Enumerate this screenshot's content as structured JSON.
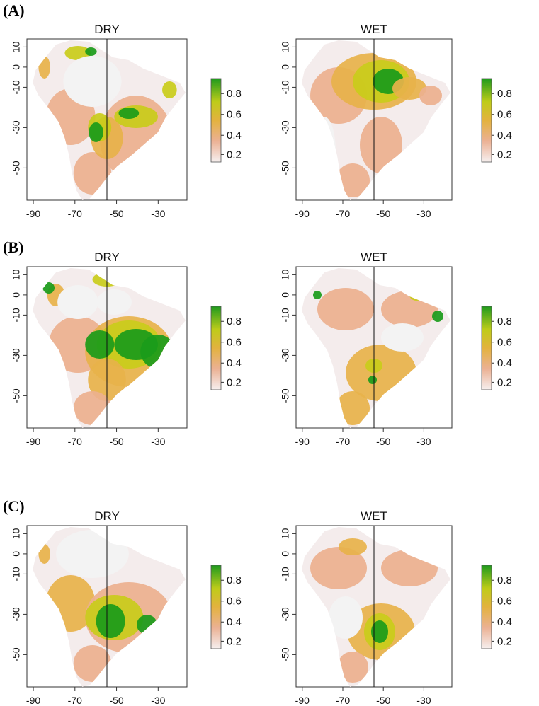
{
  "panels": [
    {
      "label": "(A)",
      "maps": [
        {
          "title": "DRY",
          "legend": [
            "0.8",
            "0.6",
            "0.4",
            "0.2"
          ],
          "x_ticks": [
            "-90",
            "-70",
            "-50",
            "-30"
          ],
          "y_ticks": [
            "10",
            "0",
            "-10",
            "-30",
            "-50"
          ],
          "pattern": "A-dry"
        },
        {
          "title": "WET",
          "legend": [
            "0.8",
            "0.6",
            "0.4",
            "0.2"
          ],
          "x_ticks": [
            "-90",
            "-70",
            "-50",
            "-30"
          ],
          "y_ticks": [
            "10",
            "0",
            "-10",
            "-30",
            "-50"
          ],
          "pattern": "A-wet"
        }
      ]
    },
    {
      "label": "(B)",
      "maps": [
        {
          "title": "DRY",
          "legend": [
            "0.8",
            "0.6",
            "0.4",
            "0.2"
          ],
          "x_ticks": [
            "-90",
            "-70",
            "-50",
            "-30"
          ],
          "y_ticks": [
            "10",
            "0",
            "-10",
            "-30",
            "-50"
          ],
          "pattern": "B-dry"
        },
        {
          "title": "WET",
          "legend": [
            "0.8",
            "0.6",
            "0.4",
            "0.2"
          ],
          "x_ticks": [
            "-90",
            "-70",
            "-50",
            "-30"
          ],
          "y_ticks": [
            "10",
            "0",
            "-10",
            "-30",
            "-50"
          ],
          "pattern": "B-wet"
        }
      ]
    },
    {
      "label": "(C)",
      "maps": [
        {
          "title": "DRY",
          "legend": [
            "0.8",
            "0.6",
            "0.4",
            "0.2"
          ],
          "x_ticks": [
            "-90",
            "-70",
            "-50",
            "-30"
          ],
          "y_ticks": [
            "10",
            "0",
            "-10",
            "-30",
            "-50"
          ],
          "pattern": "C-dry"
        },
        {
          "title": "WET",
          "legend": [
            "0.8",
            "0.6",
            "0.4",
            "0.2"
          ],
          "x_ticks": [
            "-90",
            "-70",
            "-50",
            "-30"
          ],
          "y_ticks": [
            "10",
            "0",
            "-10",
            "-30",
            "-50"
          ],
          "pattern": "C-wet"
        }
      ]
    }
  ],
  "colors": {
    "low": "#f4ecec",
    "mid_low": "#ecb08e",
    "mid": "#e7b24a",
    "mid_high": "#c9cc1a",
    "high": "#1a9b1a",
    "ocean_mask": "#f3f3f3"
  }
}
